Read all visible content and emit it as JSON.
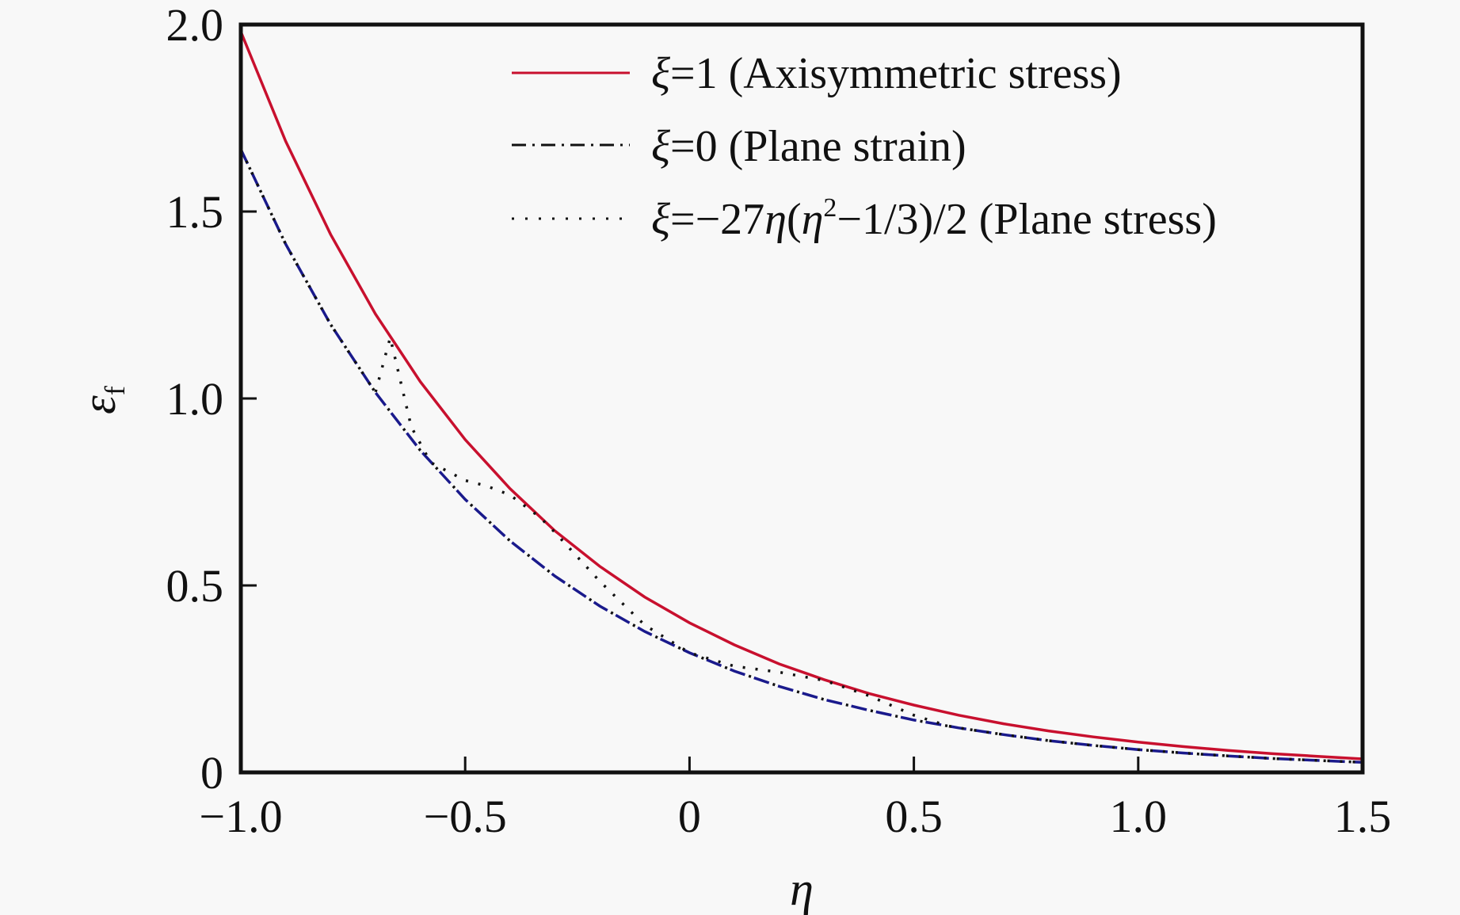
{
  "chart_data": {
    "type": "line",
    "title": "",
    "xlabel": "η",
    "ylabel": "ε",
    "ylabel_subscript": "f",
    "xlim": [
      -1.0,
      1.5
    ],
    "ylim": [
      0,
      2.0
    ],
    "xticks": [
      -1.0,
      -0.5,
      0,
      0.5,
      1.0,
      1.5
    ],
    "xtick_labels": [
      "−1.0",
      "−0.5",
      "0",
      "0.5",
      "1.0",
      "1.5"
    ],
    "yticks": [
      0,
      0.5,
      1.0,
      1.5,
      2.0
    ],
    "ytick_labels": [
      "0",
      "0.5",
      "1.0",
      "1.5",
      "2.0"
    ],
    "grid": false,
    "legend_position": "top-right",
    "series": [
      {
        "name": "ξ=1 (Axisymmetric stress)",
        "style": "solid",
        "color": "#c8102e",
        "x": [
          -1.0,
          -0.9,
          -0.8,
          -0.7,
          -0.6,
          -0.5,
          -0.4,
          -0.3,
          -0.2,
          -0.1,
          0,
          0.1,
          0.2,
          0.3,
          0.4,
          0.5,
          0.6,
          0.7,
          0.8,
          0.9,
          1.0,
          1.1,
          1.2,
          1.3,
          1.4,
          1.5
        ],
        "y": [
          1.981,
          1.688,
          1.439,
          1.226,
          1.045,
          0.89,
          0.759,
          0.646,
          0.551,
          0.469,
          0.4,
          0.341,
          0.29,
          0.248,
          0.211,
          0.18,
          0.153,
          0.13,
          0.111,
          0.095,
          0.081,
          0.069,
          0.059,
          0.05,
          0.043,
          0.036
        ]
      },
      {
        "name": "ξ=0 (Plane strain)",
        "style": "dash-dot",
        "color": "#1a1a8c",
        "x": [
          -1.0,
          -0.9,
          -0.8,
          -0.7,
          -0.6,
          -0.5,
          -0.4,
          -0.3,
          -0.2,
          -0.1,
          0,
          0.1,
          0.2,
          0.3,
          0.4,
          0.5,
          0.6,
          0.7,
          0.8,
          0.9,
          1.0,
          1.1,
          1.2,
          1.3,
          1.4,
          1.5
        ],
        "y": [
          1.666,
          1.413,
          1.198,
          1.016,
          0.861,
          0.73,
          0.619,
          0.525,
          0.445,
          0.377,
          0.32,
          0.271,
          0.23,
          0.195,
          0.166,
          0.14,
          0.119,
          0.101,
          0.085,
          0.072,
          0.061,
          0.052,
          0.044,
          0.037,
          0.032,
          0.027
        ]
      },
      {
        "name": "ξ=−27η(η²−1/3)/2 (Plane stress)",
        "style": "dotted",
        "color": "#111111",
        "x": [
          -1.0,
          -0.9,
          -0.8,
          -0.7,
          -0.667,
          -0.62,
          -0.577,
          -0.5,
          -0.45,
          -0.4,
          -0.333,
          -0.3,
          -0.2,
          -0.1,
          0,
          0.1,
          0.2,
          0.3,
          0.4,
          0.5,
          0.577,
          0.6,
          0.7,
          0.8,
          0.9,
          1.0,
          1.1,
          1.2,
          1.3,
          1.4,
          1.5
        ],
        "y": [
          1.666,
          1.413,
          1.198,
          1.016,
          1.163,
          0.924,
          0.829,
          0.781,
          0.765,
          0.742,
          0.682,
          0.642,
          0.511,
          0.394,
          0.32,
          0.284,
          0.268,
          0.246,
          0.205,
          0.153,
          0.124,
          0.119,
          0.101,
          0.085,
          0.072,
          0.061,
          0.052,
          0.044,
          0.037,
          0.032,
          0.027
        ]
      }
    ],
    "legend": [
      {
        "prefix": "ξ",
        "text": "=1 (Axisymmetric stress)"
      },
      {
        "prefix": "ξ",
        "text": "=0 (Plane strain)"
      },
      {
        "prefix": "ξ",
        "text_a": "=−27",
        "eta1": "η",
        "text_b": "(",
        "eta2": "η",
        "sup": "2",
        "text_c": "−1/3)/2 (Plane stress)"
      }
    ]
  }
}
